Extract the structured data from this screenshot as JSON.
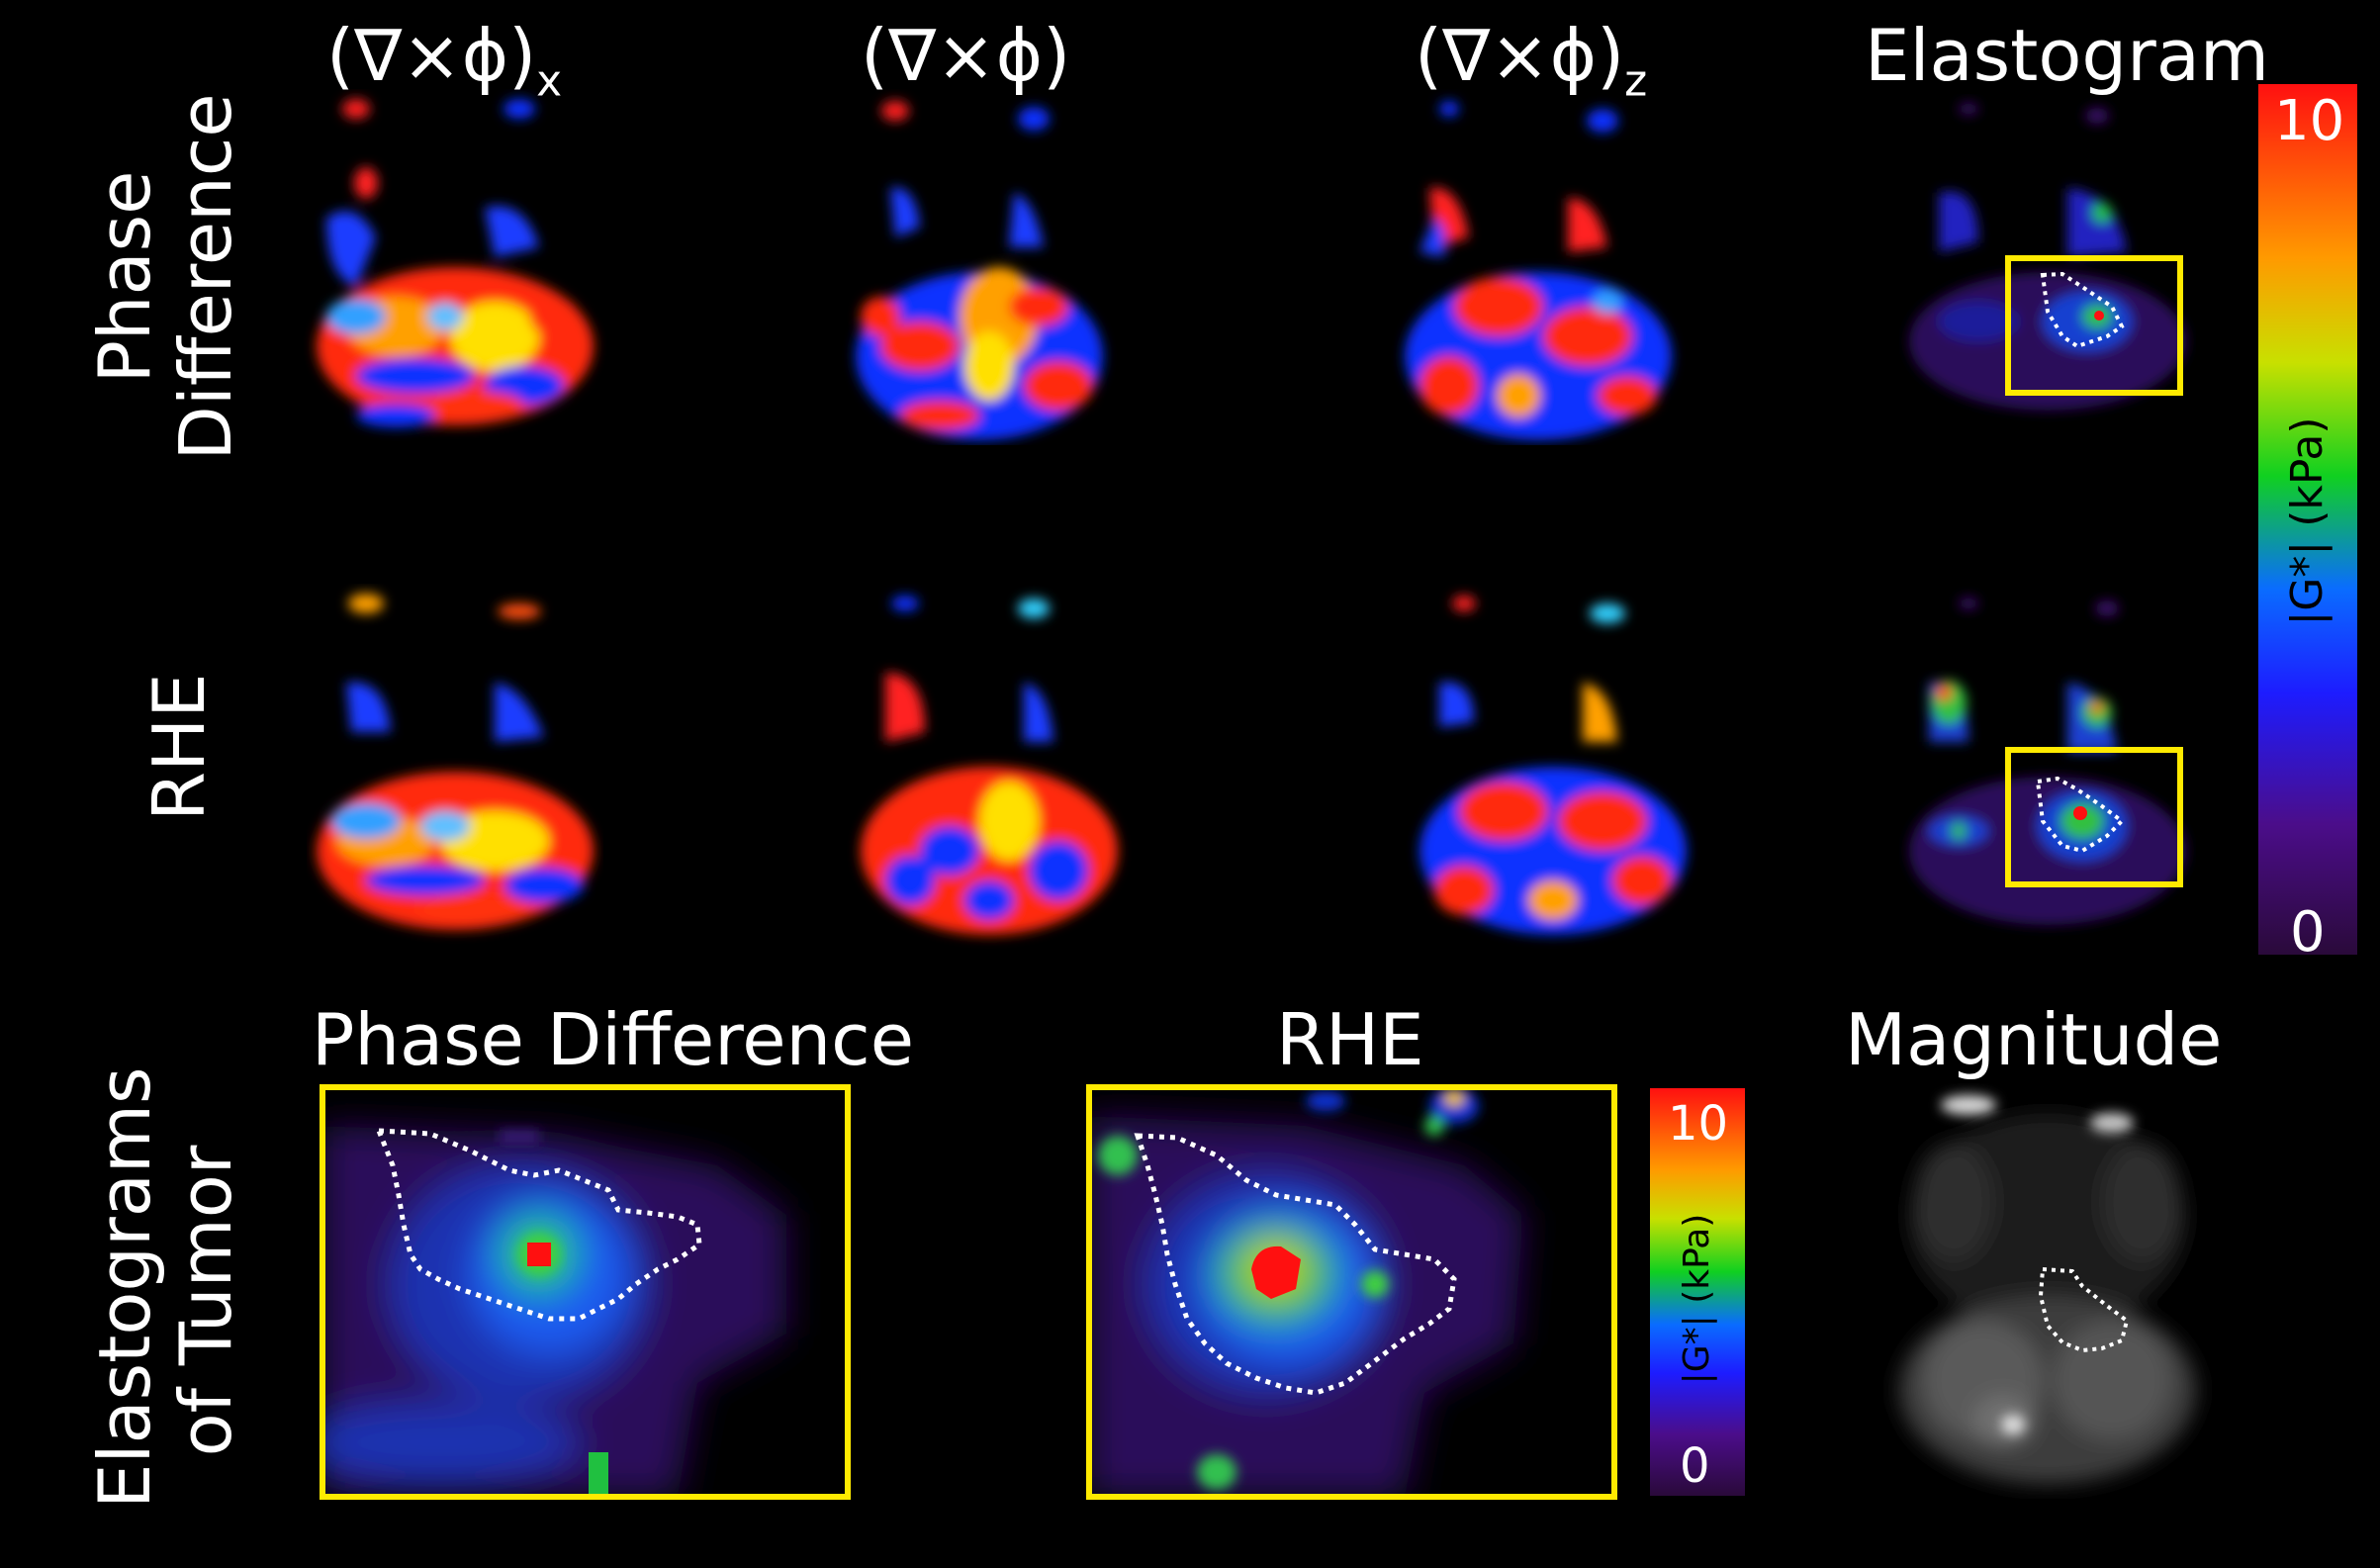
{
  "columns": {
    "curl_x": "(∇×ϕ)",
    "curl_x_sub": "x",
    "curl_y": "(∇×ϕ)",
    "curl_z": "(∇×ϕ)",
    "curl_z_sub": "z",
    "elastogram": "Elastogram"
  },
  "rows": {
    "phase_difference_line1": "Phase",
    "phase_difference_line2": "Difference",
    "rhe": "RHE",
    "elastograms_line1": "Elastograms",
    "elastograms_line2": "of Tumor"
  },
  "bottom_titles": {
    "phase_difference": "Phase Difference",
    "rhe": "RHE",
    "magnitude": "Magnitude"
  },
  "colorbar_main": {
    "max": "10",
    "min": "0",
    "label": "|G*| (kPa)"
  },
  "colorbar_small": {
    "max": "10",
    "min": "0",
    "label": "|G*| (kPa)"
  },
  "colors": {
    "background": "#000000",
    "roi_box": "#ffea00",
    "contour": "#ffffff"
  }
}
